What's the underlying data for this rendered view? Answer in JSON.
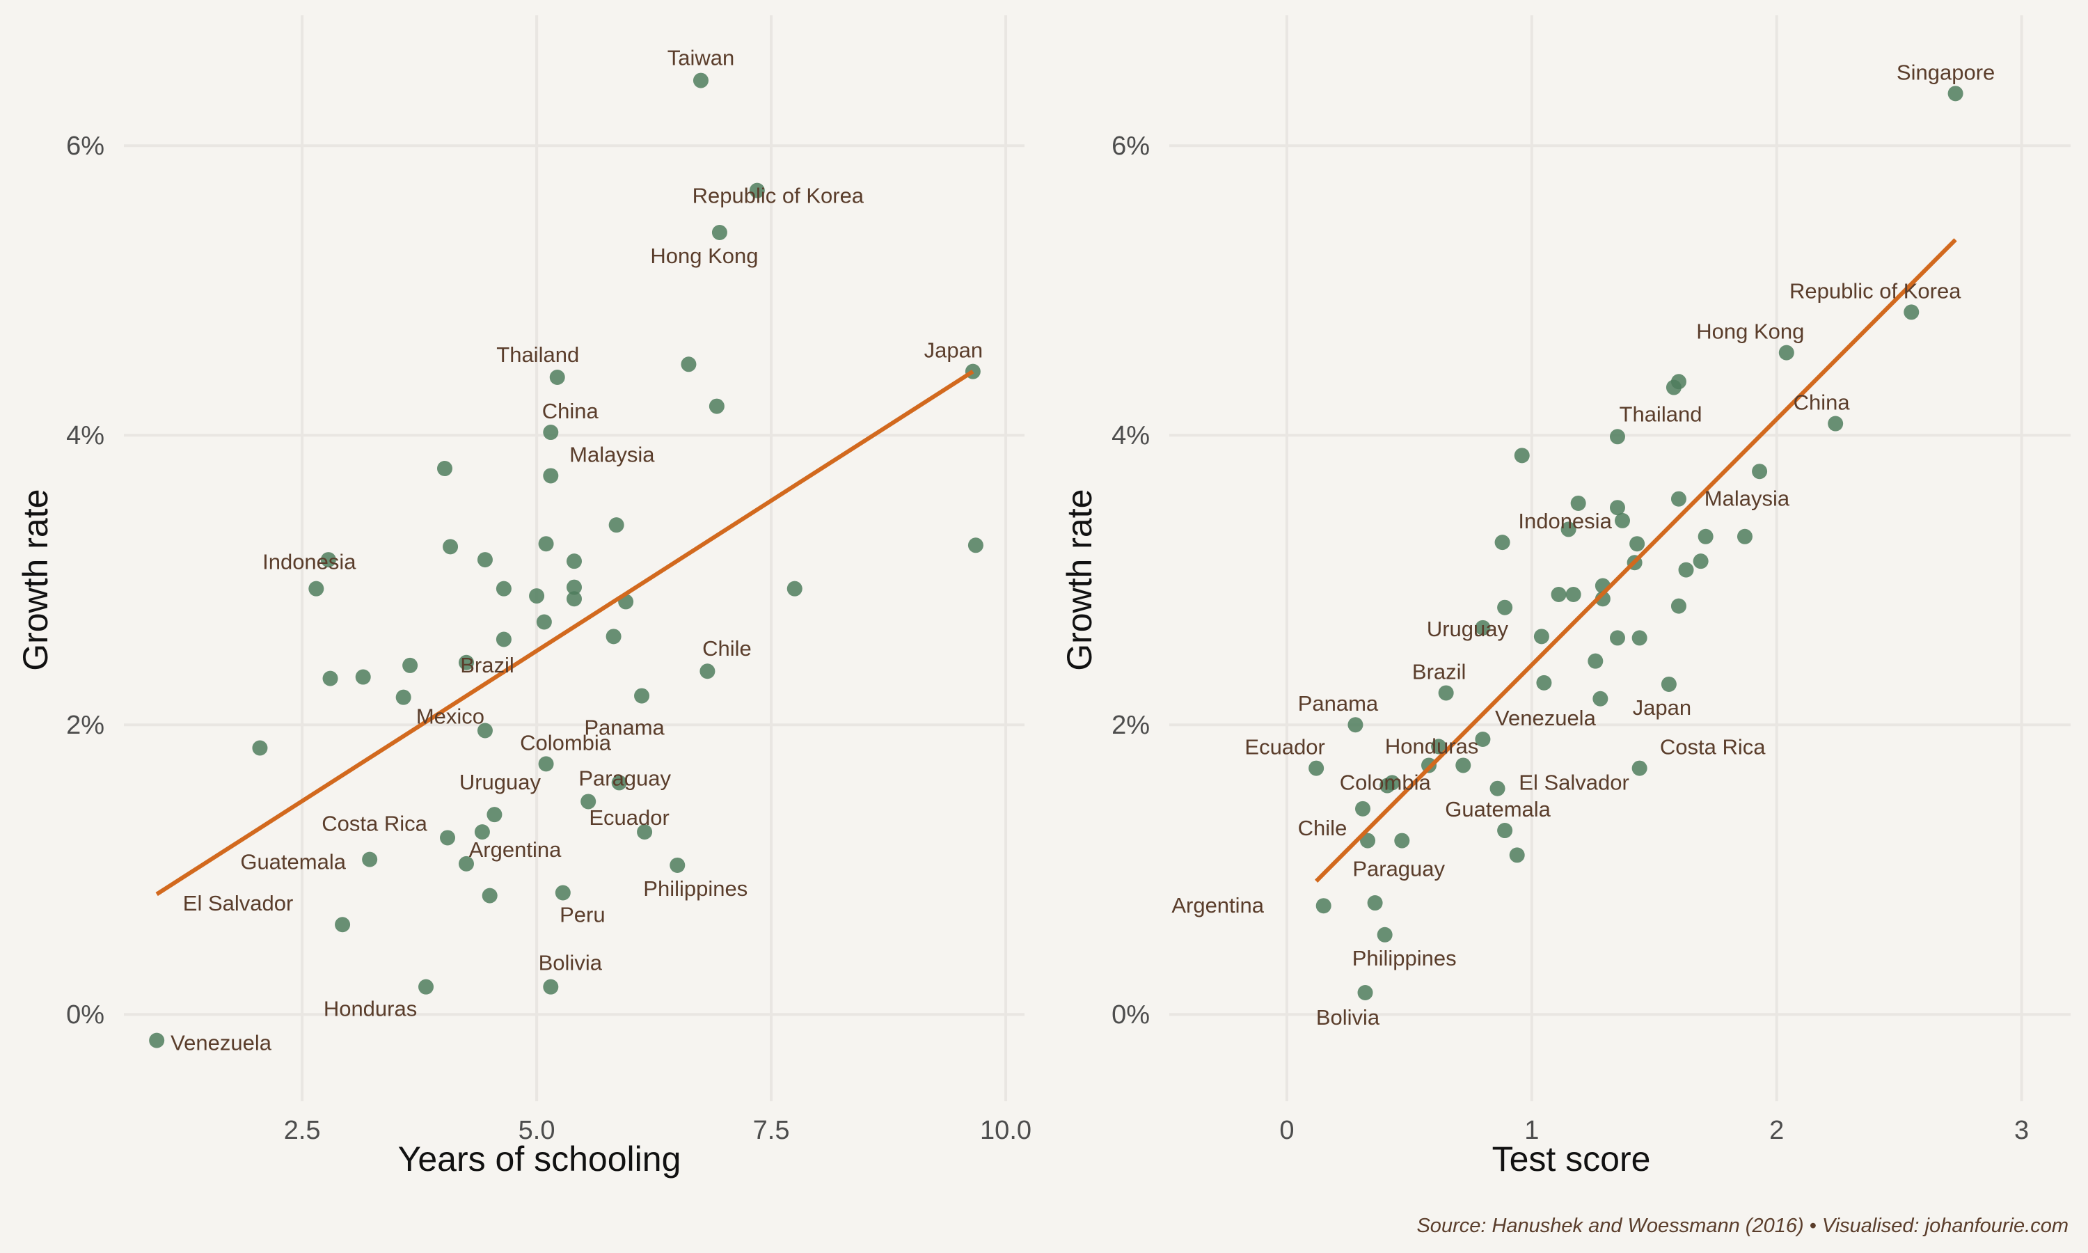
{
  "colors": {
    "background": "#f6f4f0",
    "point": "#4f7d5d",
    "fit_line": "#d2691e",
    "label": "#5a3d2b",
    "grid": "#e9e6e2"
  },
  "caption": "Source: Hanushek and Woessmann (2016) • Visualised: johanfourie.com",
  "chart_data": [
    {
      "type": "scatter",
      "xlabel": "Years of schooling",
      "ylabel": "Growth rate",
      "xlim": [
        0.6,
        10.2
      ],
      "ylim": [
        -0.6,
        6.9
      ],
      "x_ticks": [
        2.5,
        5.0,
        7.5,
        10.0
      ],
      "x_tick_labels": [
        "2.5",
        "5.0",
        "7.5",
        "10.0"
      ],
      "y_ticks": [
        0,
        2,
        4,
        6
      ],
      "y_tick_labels": [
        "0%",
        "2%",
        "4%",
        "6%"
      ],
      "grid": true,
      "fit_line": {
        "x": [
          0.95,
          9.65
        ],
        "y": [
          0.83,
          4.44
        ]
      },
      "points": [
        {
          "x": 0.95,
          "y": -0.18,
          "label": "Venezuela"
        },
        {
          "x": 2.05,
          "y": 1.84
        },
        {
          "x": 2.65,
          "y": 2.94,
          "label": "Indonesia"
        },
        {
          "x": 2.78,
          "y": 3.14
        },
        {
          "x": 2.8,
          "y": 2.32
        },
        {
          "x": 2.93,
          "y": 0.62,
          "label": "El Salvador"
        },
        {
          "x": 3.15,
          "y": 2.33
        },
        {
          "x": 3.22,
          "y": 1.07,
          "label": "Guatemala"
        },
        {
          "x": 3.58,
          "y": 2.19
        },
        {
          "x": 3.65,
          "y": 2.41
        },
        {
          "x": 3.82,
          "y": 0.19,
          "label": "Honduras"
        },
        {
          "x": 4.02,
          "y": 3.77
        },
        {
          "x": 4.05,
          "y": 1.22,
          "label": "Costa Rica"
        },
        {
          "x": 4.08,
          "y": 3.23
        },
        {
          "x": 4.25,
          "y": 2.43,
          "label": "Brazil"
        },
        {
          "x": 4.25,
          "y": 1.04,
          "label": "Argentina"
        },
        {
          "x": 4.42,
          "y": 1.26
        },
        {
          "x": 4.45,
          "y": 1.96,
          "label": "Mexico"
        },
        {
          "x": 4.45,
          "y": 3.14
        },
        {
          "x": 4.5,
          "y": 0.82
        },
        {
          "x": 4.55,
          "y": 1.38,
          "label": "Uruguay"
        },
        {
          "x": 4.65,
          "y": 2.94
        },
        {
          "x": 4.65,
          "y": 2.59
        },
        {
          "x": 5.0,
          "y": 2.89
        },
        {
          "x": 5.08,
          "y": 2.71
        },
        {
          "x": 5.1,
          "y": 3.25
        },
        {
          "x": 5.1,
          "y": 1.73,
          "label": "Colombia"
        },
        {
          "x": 5.15,
          "y": 4.02,
          "label": "China"
        },
        {
          "x": 5.15,
          "y": 3.72,
          "label": "Malaysia"
        },
        {
          "x": 5.15,
          "y": 0.19,
          "label": "Bolivia"
        },
        {
          "x": 5.22,
          "y": 4.4,
          "label": "Thailand"
        },
        {
          "x": 5.28,
          "y": 0.84,
          "label": "Peru"
        },
        {
          "x": 5.4,
          "y": 3.13
        },
        {
          "x": 5.4,
          "y": 2.95
        },
        {
          "x": 5.4,
          "y": 2.87
        },
        {
          "x": 5.55,
          "y": 1.47
        },
        {
          "x": 5.82,
          "y": 2.61
        },
        {
          "x": 5.85,
          "y": 3.38
        },
        {
          "x": 5.88,
          "y": 1.6,
          "label": "Paraguay"
        },
        {
          "x": 5.95,
          "y": 2.85
        },
        {
          "x": 6.12,
          "y": 2.2,
          "label": "Panama"
        },
        {
          "x": 6.15,
          "y": 1.26,
          "label": "Ecuador"
        },
        {
          "x": 6.5,
          "y": 1.03,
          "label": "Philippines"
        },
        {
          "x": 6.62,
          "y": 4.49
        },
        {
          "x": 6.75,
          "y": 6.45,
          "label": "Taiwan"
        },
        {
          "x": 6.82,
          "y": 2.37,
          "label": "Chile"
        },
        {
          "x": 6.92,
          "y": 4.2
        },
        {
          "x": 6.95,
          "y": 5.4,
          "label": "Hong Kong"
        },
        {
          "x": 7.35,
          "y": 5.69,
          "label": "Republic of Korea"
        },
        {
          "x": 7.75,
          "y": 2.94
        },
        {
          "x": 9.65,
          "y": 4.44,
          "label": "Japan"
        },
        {
          "x": 9.68,
          "y": 3.24
        }
      ]
    },
    {
      "type": "scatter",
      "xlabel": "Test score",
      "ylabel": "Growth rate",
      "xlim": [
        -0.48,
        3.2
      ],
      "ylim": [
        -0.6,
        6.9
      ],
      "x_ticks": [
        0,
        1,
        2,
        3
      ],
      "x_tick_labels": [
        "0",
        "1",
        "2",
        "3"
      ],
      "y_ticks": [
        0,
        2,
        4,
        6
      ],
      "y_tick_labels": [
        "0%",
        "2%",
        "4%",
        "6%"
      ],
      "grid": true,
      "fit_line": {
        "x": [
          0.12,
          2.73
        ],
        "y": [
          0.92,
          5.35
        ]
      },
      "points": [
        {
          "x": 0.12,
          "y": 1.7,
          "label": "Ecuador"
        },
        {
          "x": 0.15,
          "y": 0.75,
          "label": "Argentina"
        },
        {
          "x": 0.28,
          "y": 2.0,
          "label": "Panama"
        },
        {
          "x": 0.31,
          "y": 1.42,
          "label": "Chile"
        },
        {
          "x": 0.32,
          "y": 0.15,
          "label": "Bolivia"
        },
        {
          "x": 0.33,
          "y": 1.2
        },
        {
          "x": 0.36,
          "y": 0.77
        },
        {
          "x": 0.4,
          "y": 0.55,
          "label": "Philippines"
        },
        {
          "x": 0.41,
          "y": 1.58
        },
        {
          "x": 0.43,
          "y": 1.6,
          "label": "Colombia"
        },
        {
          "x": 0.47,
          "y": 1.2
        },
        {
          "x": 0.58,
          "y": 1.72
        },
        {
          "x": 0.62,
          "y": 1.85,
          "label": "Honduras"
        },
        {
          "x": 0.65,
          "y": 2.22,
          "label": "Brazil"
        },
        {
          "x": 0.72,
          "y": 1.72
        },
        {
          "x": 0.8,
          "y": 1.9,
          "label": "Venezuela"
        },
        {
          "x": 0.8,
          "y": 2.67,
          "label": "Uruguay"
        },
        {
          "x": 0.86,
          "y": 1.56,
          "label": "El Salvador"
        },
        {
          "x": 0.88,
          "y": 3.26,
          "label": "Indonesia"
        },
        {
          "x": 0.89,
          "y": 1.27,
          "label": "Guatemala"
        },
        {
          "x": 0.89,
          "y": 2.81
        },
        {
          "x": 0.94,
          "y": 1.1,
          "label": "Paraguay"
        },
        {
          "x": 0.96,
          "y": 3.86
        },
        {
          "x": 1.04,
          "y": 2.61
        },
        {
          "x": 1.05,
          "y": 2.29
        },
        {
          "x": 1.11,
          "y": 2.9
        },
        {
          "x": 1.15,
          "y": 3.35
        },
        {
          "x": 1.17,
          "y": 2.9
        },
        {
          "x": 1.19,
          "y": 3.53
        },
        {
          "x": 1.26,
          "y": 2.44
        },
        {
          "x": 1.28,
          "y": 2.18
        },
        {
          "x": 1.29,
          "y": 2.96
        },
        {
          "x": 1.29,
          "y": 2.87
        },
        {
          "x": 1.35,
          "y": 3.99,
          "label": "Thailand"
        },
        {
          "x": 1.35,
          "y": 2.6
        },
        {
          "x": 1.35,
          "y": 3.5
        },
        {
          "x": 1.37,
          "y": 3.41
        },
        {
          "x": 1.42,
          "y": 3.12
        },
        {
          "x": 1.43,
          "y": 3.25
        },
        {
          "x": 1.44,
          "y": 2.6
        },
        {
          "x": 1.44,
          "y": 1.7,
          "label": "Costa Rica"
        },
        {
          "x": 1.56,
          "y": 2.28,
          "label": "Japan"
        },
        {
          "x": 1.58,
          "y": 4.33
        },
        {
          "x": 1.6,
          "y": 4.37
        },
        {
          "x": 1.6,
          "y": 3.56,
          "label": "Malaysia"
        },
        {
          "x": 1.6,
          "y": 2.82
        },
        {
          "x": 1.63,
          "y": 3.07
        },
        {
          "x": 1.69,
          "y": 3.13
        },
        {
          "x": 1.71,
          "y": 3.3
        },
        {
          "x": 1.87,
          "y": 3.3
        },
        {
          "x": 1.93,
          "y": 3.75
        },
        {
          "x": 2.04,
          "y": 4.57,
          "label": "Hong Kong"
        },
        {
          "x": 2.24,
          "y": 4.08,
          "label": "China"
        },
        {
          "x": 2.55,
          "y": 4.85,
          "label": "Republic of Korea"
        },
        {
          "x": 2.73,
          "y": 6.36,
          "label": "Singapore"
        }
      ]
    }
  ]
}
